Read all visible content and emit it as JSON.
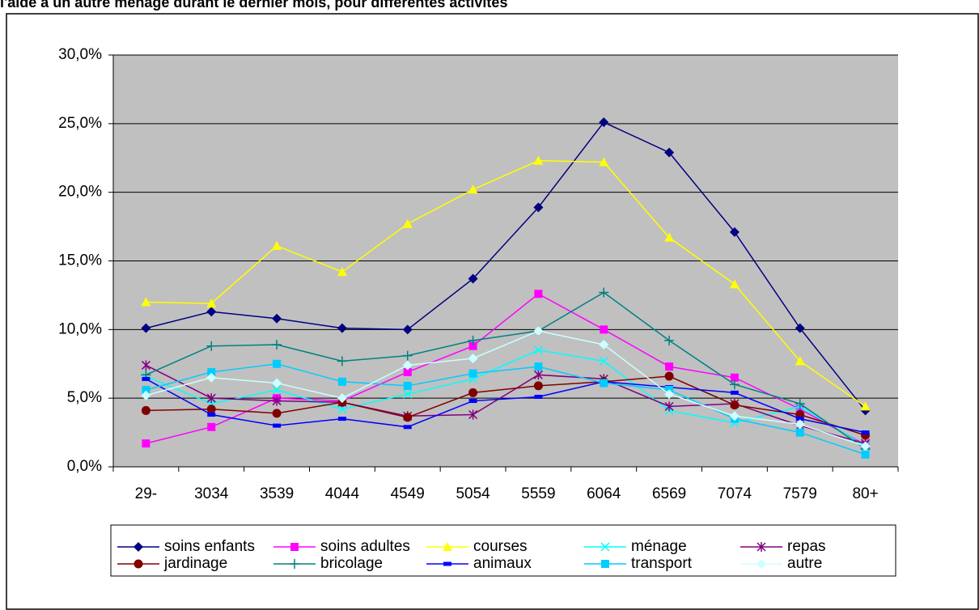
{
  "chart_data": {
    "type": "line",
    "title": "l'aide à un autre ménage durant le dernier mois, pour différentes activités",
    "categories": [
      "29-",
      "3034",
      "3539",
      "4044",
      "4549",
      "5054",
      "5559",
      "6064",
      "6569",
      "7074",
      "7579",
      "80+"
    ],
    "ylim": [
      0,
      30
    ],
    "yticks": [
      {
        "value": 0,
        "label": "0,0%"
      },
      {
        "value": 5,
        "label": "5,0%"
      },
      {
        "value": 10,
        "label": "10,0%"
      },
      {
        "value": 15,
        "label": "15,0%"
      },
      {
        "value": 20,
        "label": "20,0%"
      },
      {
        "value": 25,
        "label": "25,0%"
      },
      {
        "value": 30,
        "label": "30,0%"
      }
    ],
    "grid": true,
    "legend": "bottom",
    "series": [
      {
        "name": "soins enfants",
        "color": "#000080",
        "marker": "diamond",
        "values": [
          10.1,
          11.3,
          10.8,
          10.1,
          10.0,
          13.7,
          18.9,
          25.1,
          22.9,
          17.1,
          10.1,
          4.1
        ]
      },
      {
        "name": "soins adultes",
        "color": "#ff00ff",
        "marker": "square",
        "values": [
          1.7,
          2.9,
          5.0,
          4.8,
          6.9,
          8.8,
          12.6,
          10.0,
          7.3,
          6.5,
          4.2,
          1.6
        ]
      },
      {
        "name": "courses",
        "color": "#ffff00",
        "marker": "triangle",
        "values": [
          12.0,
          11.9,
          16.1,
          14.2,
          17.7,
          20.2,
          22.3,
          22.2,
          16.7,
          13.3,
          7.7,
          4.4
        ]
      },
      {
        "name": "ménage",
        "color": "#00ffff",
        "marker": "x",
        "values": [
          6.6,
          4.6,
          5.6,
          4.2,
          5.3,
          6.4,
          8.5,
          7.7,
          4.1,
          3.2,
          4.4,
          1.5
        ]
      },
      {
        "name": "repas",
        "color": "#800080",
        "marker": "star",
        "values": [
          7.4,
          5.0,
          4.8,
          4.7,
          3.7,
          3.8,
          6.7,
          6.4,
          4.4,
          4.6,
          3.0,
          1.7
        ]
      },
      {
        "name": "jardinage",
        "color": "#800000",
        "marker": "circle",
        "values": [
          4.1,
          4.2,
          3.9,
          4.7,
          3.6,
          5.4,
          5.9,
          6.2,
          6.6,
          4.5,
          3.8,
          2.3
        ]
      },
      {
        "name": "bricolage",
        "color": "#008080",
        "marker": "plus",
        "values": [
          6.7,
          8.8,
          8.9,
          7.7,
          8.1,
          9.2,
          9.9,
          12.7,
          9.2,
          6.0,
          4.6,
          1.3
        ]
      },
      {
        "name": "animaux",
        "color": "#0000ff",
        "marker": "dash",
        "values": [
          6.4,
          3.8,
          3.0,
          3.5,
          2.9,
          4.8,
          5.1,
          6.2,
          5.8,
          5.4,
          3.5,
          2.5
        ]
      },
      {
        "name": "transport",
        "color": "#00ccff",
        "marker": "square",
        "values": [
          5.6,
          6.9,
          7.5,
          6.2,
          5.9,
          6.8,
          7.3,
          6.1,
          5.6,
          3.5,
          2.5,
          0.9
        ]
      },
      {
        "name": "autre",
        "color": "#ccffff",
        "marker": "diamond",
        "values": [
          5.2,
          6.5,
          6.1,
          5.0,
          7.4,
          7.9,
          9.9,
          8.9,
          5.3,
          3.7,
          3.1,
          1.5
        ]
      }
    ]
  }
}
